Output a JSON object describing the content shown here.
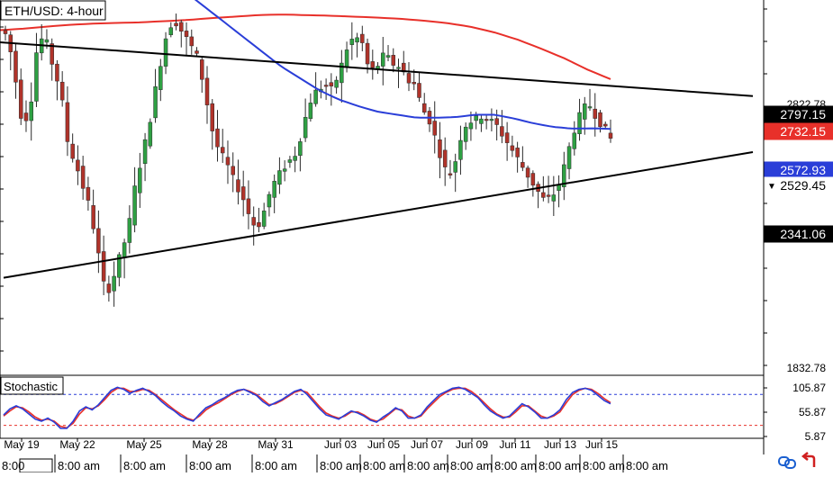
{
  "title": "ETH/USD: 4-hour",
  "indicator_title": "Stochastic",
  "bottom_left_marker": "8:00",
  "colors": {
    "background": "#ffffff",
    "bull": "#2ea043",
    "bear": "#b0332a",
    "ma_long": "#e8302a",
    "ma_short": "#2a3ed8",
    "trendline": "#000000",
    "stoch_k": "#2a3ed8",
    "stoch_d": "#e8302a",
    "level_high": "#2a3ed8",
    "level_low": "#e8302a"
  },
  "icons": [
    "link-icon",
    "back-arrow-icon"
  ],
  "chart_data": [
    {
      "type": "candlestick",
      "title": "ETH/USD: 4-hour",
      "ylim": [
        1760,
        3000
      ],
      "y_ticks": [
        "2822.78",
        "1832.78"
      ],
      "price_labels": [
        {
          "text": "2797.15",
          "value": 2797.15,
          "bg": "#000000",
          "fg": "#ffffff",
          "marker": ""
        },
        {
          "text": "2732.15",
          "value": 2732.15,
          "bg": "#e8302a",
          "fg": "#ffffff",
          "marker": ""
        },
        {
          "text": "2572.93",
          "value": 2572.93,
          "bg": "#2a3ed8",
          "fg": "#ffffff",
          "marker": ""
        },
        {
          "text": "2529.45",
          "value": 2529.45,
          "bg": "#ffffff",
          "fg": "#000000",
          "marker": "▼"
        },
        {
          "text": "2341.06",
          "value": 2341.06,
          "bg": "#000000",
          "fg": "#ffffff",
          "marker": ""
        }
      ],
      "x_dates": [
        "May 19",
        "May 22",
        "May 25",
        "May 28",
        "May 31",
        "Jun 03",
        "Jun 05",
        "Jun 07",
        "Jun 09",
        "Jun 11",
        "Jun 13",
        "Jun 15"
      ],
      "x_times": [
        "8:00 am",
        "8:00 am",
        "8:00 am",
        "8:00 am",
        "8:00 am",
        "8:00 am",
        "8:00 am",
        "8:00 am",
        "8:00 am",
        "8:00 am",
        "8:00 am",
        "8:00 am"
      ],
      "close_path": [
        2900,
        2880,
        2740,
        2580,
        2650,
        2870,
        2870,
        2780,
        2700,
        2520,
        2460,
        2380,
        2300,
        2160,
        2020,
        2080,
        2160,
        2240,
        2400,
        2500,
        2620,
        2760,
        2880,
        2940,
        2900,
        2860,
        2820,
        2720,
        2580,
        2500,
        2460,
        2400,
        2360,
        2290,
        2240,
        2300,
        2380,
        2420,
        2460,
        2480,
        2560,
        2660,
        2700,
        2720,
        2700,
        2760,
        2840,
        2880,
        2860,
        2760,
        2780,
        2820,
        2790,
        2780,
        2740,
        2720,
        2640,
        2600,
        2520,
        2440,
        2420,
        2540,
        2600,
        2600,
        2620,
        2600,
        2580,
        2540,
        2500,
        2460,
        2420,
        2380,
        2340,
        2340,
        2380,
        2460,
        2560,
        2620,
        2660,
        2620,
        2580,
        2540
      ],
      "trendline_upper": [
        [
          0,
          2860
        ],
        [
          118,
          2795
        ]
      ],
      "trendline_lower": [
        [
          0,
          2080
        ],
        [
          118,
          2395
        ]
      ],
      "ma_long_path": [
        2900,
        2905,
        2912,
        2918,
        2922,
        2924,
        2926,
        2930,
        2934,
        2940,
        2945,
        2950,
        2952,
        2950,
        2948,
        2945,
        2942,
        2938,
        2932,
        2924,
        2912,
        2894,
        2870,
        2840,
        2808,
        2770,
        2738
      ],
      "ma_short_path": [
        3120,
        3100,
        3070,
        3030,
        2980,
        2930,
        2880,
        2830,
        2780,
        2740,
        2700,
        2670,
        2648,
        2630,
        2620,
        2610,
        2610,
        2612,
        2620,
        2620,
        2608,
        2592,
        2580,
        2574,
        2575,
        2573
      ],
      "series": [
        {
          "name": "",
          "kind": "candles"
        },
        {
          "name": "",
          "kind": "ma_long"
        },
        {
          "name": "",
          "kind": "ma_short"
        }
      ]
    },
    {
      "type": "line",
      "title": "Stochastic",
      "ylim": [
        0,
        112
      ],
      "y_ticks": [
        "105.87",
        "55.87",
        "5.87"
      ],
      "levels": [
        80,
        20
      ],
      "k_path": [
        40,
        52,
        58,
        52,
        42,
        32,
        28,
        34,
        26,
        14,
        14,
        28,
        48,
        56,
        50,
        60,
        74,
        88,
        94,
        90,
        82,
        88,
        92,
        86,
        78,
        66,
        56,
        48,
        38,
        32,
        28,
        42,
        54,
        60,
        68,
        74,
        82,
        88,
        90,
        84,
        78,
        66,
        58,
        64,
        70,
        78,
        86,
        90,
        80,
        66,
        52,
        40,
        36,
        32,
        40,
        48,
        44,
        38,
        30,
        26,
        36,
        44,
        54,
        48,
        34,
        34,
        40,
        56,
        68,
        80,
        86,
        92,
        94,
        90,
        82,
        74,
        60,
        48,
        40,
        34,
        38,
        50,
        62,
        56,
        46,
        34,
        34,
        40,
        50,
        70,
        84,
        90,
        92,
        88,
        78,
        68,
        62
      ],
      "d_path": [
        38,
        48,
        56,
        54,
        46,
        36,
        30,
        32,
        28,
        18,
        15,
        24,
        42,
        54,
        52,
        58,
        70,
        84,
        92,
        92,
        86,
        86,
        90,
        88,
        80,
        70,
        60,
        50,
        42,
        34,
        30,
        38,
        50,
        58,
        64,
        72,
        80,
        86,
        90,
        86,
        80,
        70,
        60,
        62,
        68,
        76,
        84,
        88,
        84,
        70,
        56,
        44,
        38,
        34,
        38,
        46,
        46,
        40,
        32,
        28,
        32,
        42,
        52,
        50,
        38,
        34,
        38,
        52,
        64,
        76,
        84,
        90,
        92,
        92,
        86,
        76,
        64,
        52,
        42,
        36,
        36,
        46,
        58,
        58,
        48,
        38,
        34,
        38,
        46,
        64,
        80,
        88,
        92,
        90,
        82,
        72,
        64
      ],
      "series": [
        {
          "name": "",
          "kind": "k"
        },
        {
          "name": "",
          "kind": "d"
        }
      ]
    }
  ]
}
